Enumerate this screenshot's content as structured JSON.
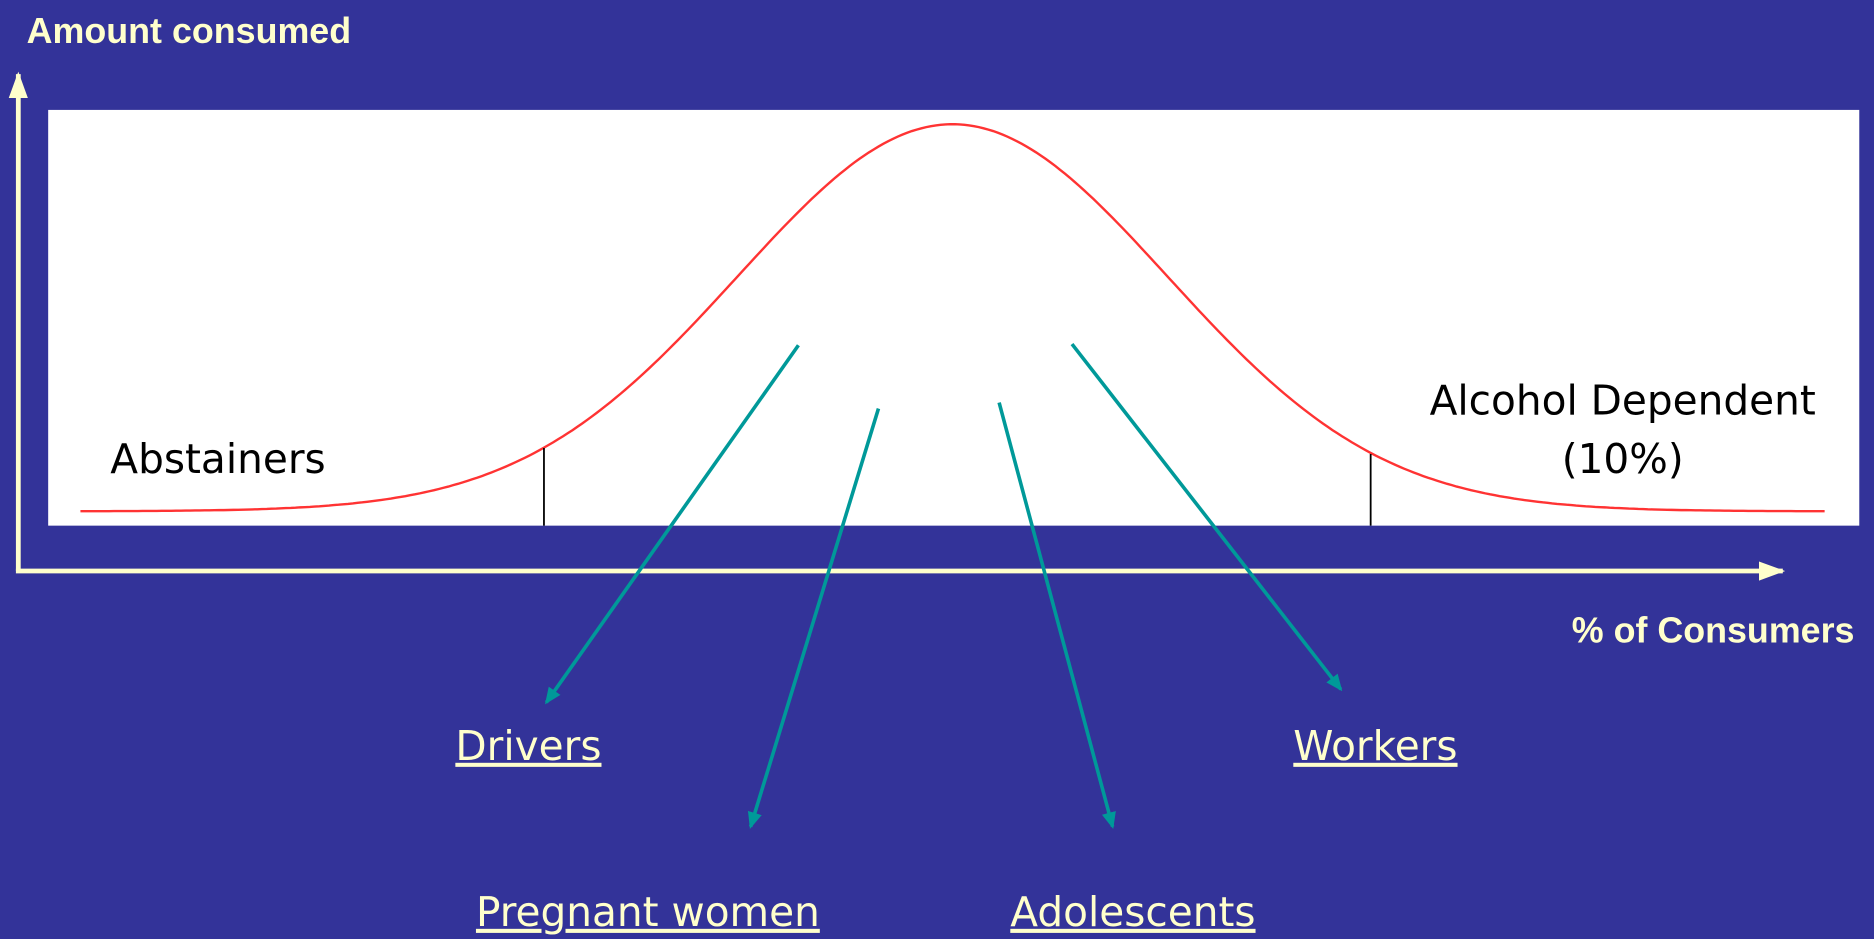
{
  "axes": {
    "y_label": "Amount consumed",
    "x_label": "% of Consumers"
  },
  "curve_labels": {
    "left": "Abstainers",
    "right": [
      "Alcohol Dependent",
      "(10%)"
    ]
  },
  "groups": [
    "Drivers",
    "Pregnant women",
    "Adolescents",
    "Workers"
  ]
}
